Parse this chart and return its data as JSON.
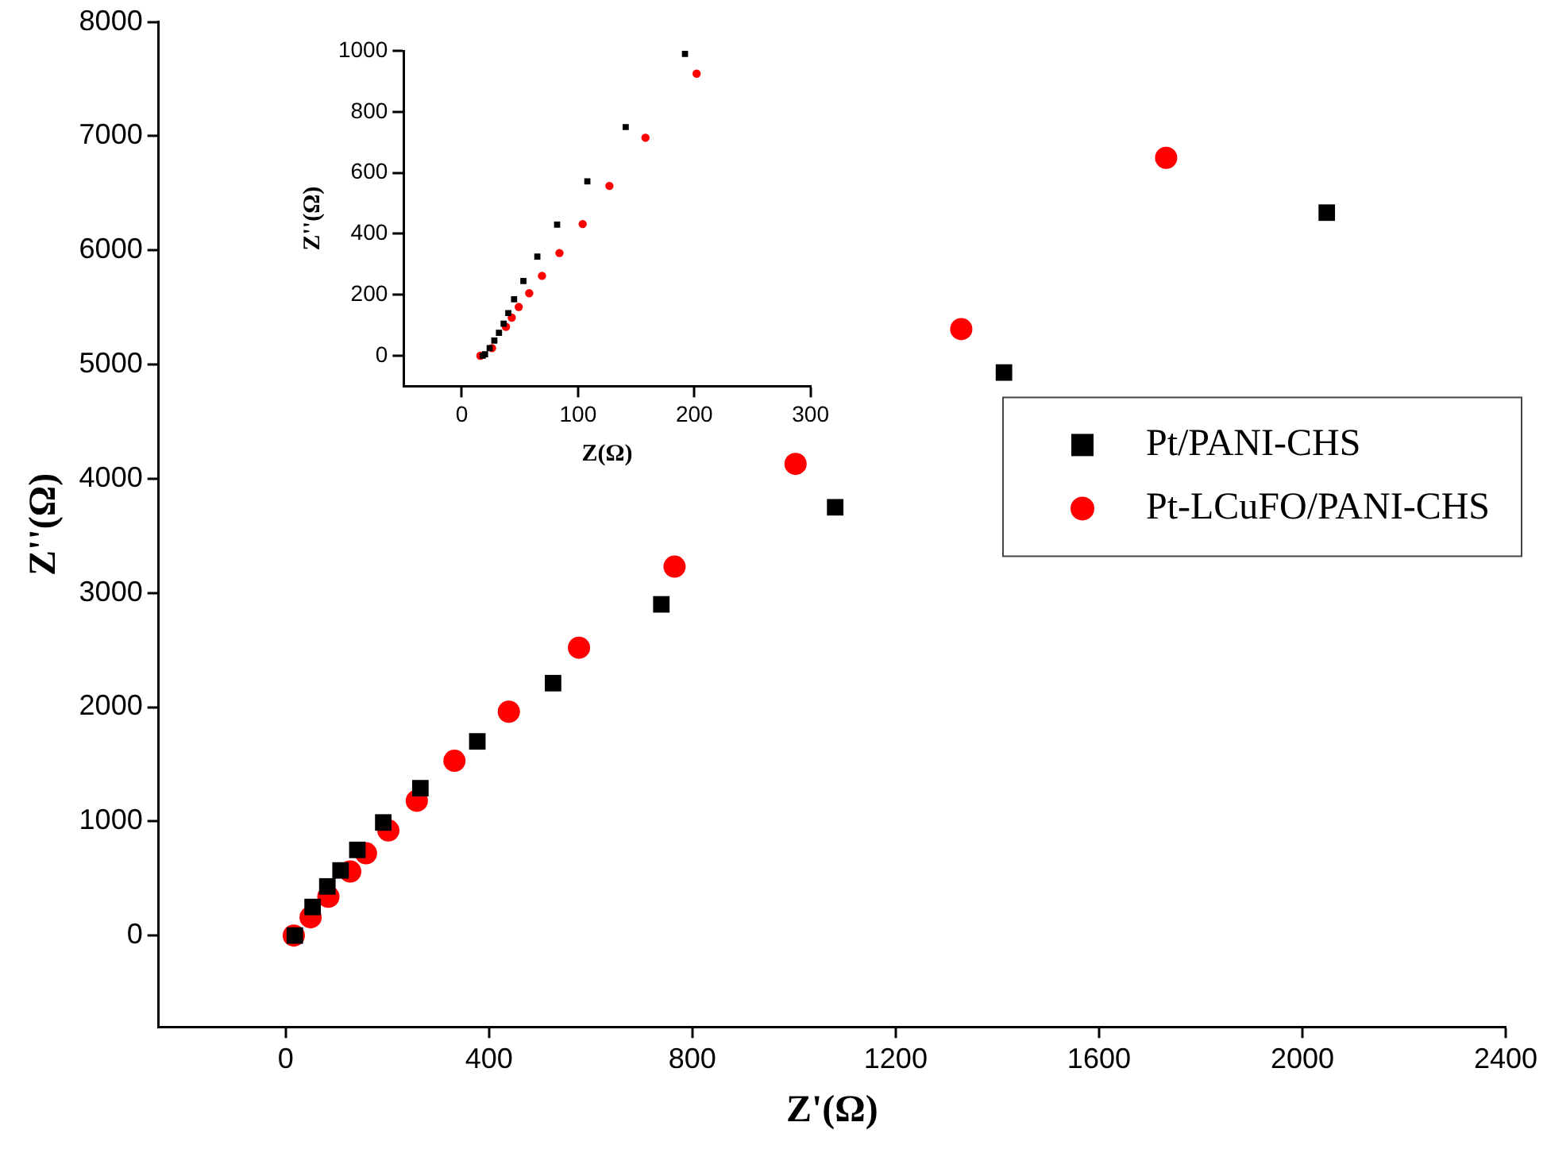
{
  "chart_data": [
    {
      "type": "scatter",
      "xlabel": "Z'(Ω)",
      "ylabel": "Z''(Ω)",
      "xlim": [
        -250,
        2400
      ],
      "xticks": [
        0,
        400,
        800,
        1200,
        1600,
        2000,
        2400
      ],
      "ylim": [
        -800,
        8000
      ],
      "yticks": [
        0,
        1000,
        2000,
        3000,
        4000,
        5000,
        6000,
        7000,
        8000
      ],
      "legend": "right",
      "series": [
        {
          "name": "Pt/PANI-CHS",
          "color": "#000000",
          "marker": "square",
          "x": [
            18,
            53,
            82,
            108,
            141,
            192,
            265,
            377,
            526,
            739,
            1081,
            1413,
            2048
          ],
          "values": [
            0,
            250,
            430,
            570,
            750,
            990,
            1290,
            1700,
            2210,
            2900,
            3750,
            4930,
            6330
          ]
        },
        {
          "name": "Pt-LCuFO/PANI-CHS",
          "color": "#ff0000",
          "marker": "circle",
          "x": [
            16,
            49,
            84,
            127,
            158,
            202,
            258,
            332,
            439,
            577,
            765,
            1003,
            1329,
            1732
          ],
          "values": [
            0,
            160,
            340,
            560,
            720,
            920,
            1180,
            1530,
            1960,
            2520,
            3230,
            4130,
            5310,
            6810
          ]
        }
      ]
    },
    {
      "type": "scatter",
      "xlabel": "Z(Ω)",
      "ylabel": "Z''(Ω)",
      "xlim": [
        -50,
        300
      ],
      "xticks": [
        0,
        100,
        200,
        300
      ],
      "ylim": [
        -100,
        1000
      ],
      "yticks": [
        0,
        200,
        400,
        600,
        800,
        1000
      ],
      "series": [
        {
          "color": "#000000",
          "marker": "square",
          "x": [
            18,
            20,
            24,
            28,
            32,
            36,
            40,
            45,
            53,
            65,
            82,
            108,
            141,
            192
          ],
          "values": [
            0,
            5,
            25,
            50,
            75,
            105,
            140,
            185,
            245,
            325,
            430,
            572,
            750,
            990
          ]
        },
        {
          "color": "#ff0000",
          "marker": "circle",
          "x": [
            16,
            26,
            38,
            43,
            49,
            58,
            69,
            84,
            104,
            127,
            158,
            202
          ],
          "values": [
            0,
            25,
            95,
            125,
            160,
            205,
            262,
            337,
            432,
            557,
            715,
            925
          ]
        }
      ]
    }
  ]
}
